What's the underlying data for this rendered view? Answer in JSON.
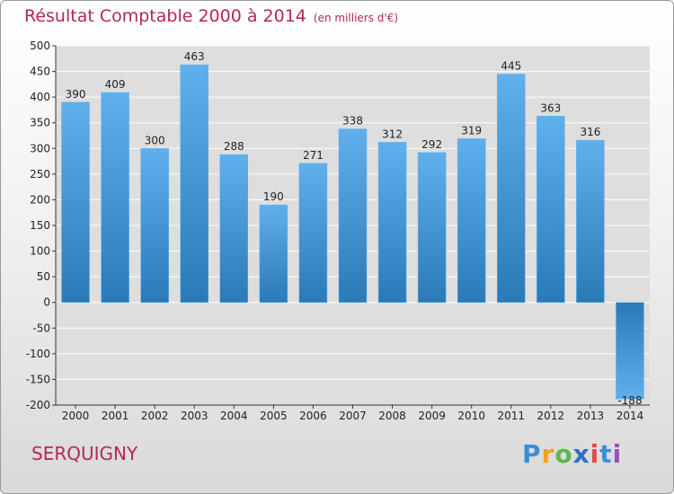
{
  "chart_data": {
    "type": "bar",
    "title": "Résultat Comptable 2000 à 2014",
    "subtitle": "(en milliers d'€)",
    "categories": [
      "2000",
      "2001",
      "2002",
      "2003",
      "2004",
      "2005",
      "2006",
      "2007",
      "2008",
      "2009",
      "2010",
      "2011",
      "2012",
      "2013",
      "2014"
    ],
    "values": [
      390,
      409,
      300,
      463,
      288,
      190,
      271,
      338,
      312,
      292,
      319,
      445,
      363,
      316,
      -188
    ],
    "ylim": [
      -200,
      500
    ],
    "yticks": [
      500,
      450,
      400,
      350,
      300,
      250,
      200,
      150,
      100,
      50,
      0,
      -50,
      -100,
      -150,
      -200
    ],
    "ytick_labels": [
      "500",
      "450",
      "400",
      "350",
      "300",
      "250",
      "200",
      "150",
      "100",
      "50",
      "0",
      "-50",
      "-100",
      "-150",
      "-200"
    ],
    "value_labels": [
      "390",
      "409",
      "300",
      "463",
      "288",
      "190",
      "271",
      "338",
      "312",
      "292",
      "319",
      "445",
      "363",
      "316",
      "-188"
    ],
    "grid": true,
    "xlabel": "",
    "ylabel": ""
  },
  "commune": "SERQUIGNY",
  "logo": {
    "p": "P",
    "r": "r",
    "o": "o",
    "x": "x",
    "i1": "i",
    "t": "t",
    "i2": "i"
  },
  "colors": {
    "title": "#b5265a",
    "bar_top": "#5fb0ec",
    "bar_bottom": "#2a7ab8",
    "grid": "#ffffff",
    "plot_bg": "#dedede"
  }
}
